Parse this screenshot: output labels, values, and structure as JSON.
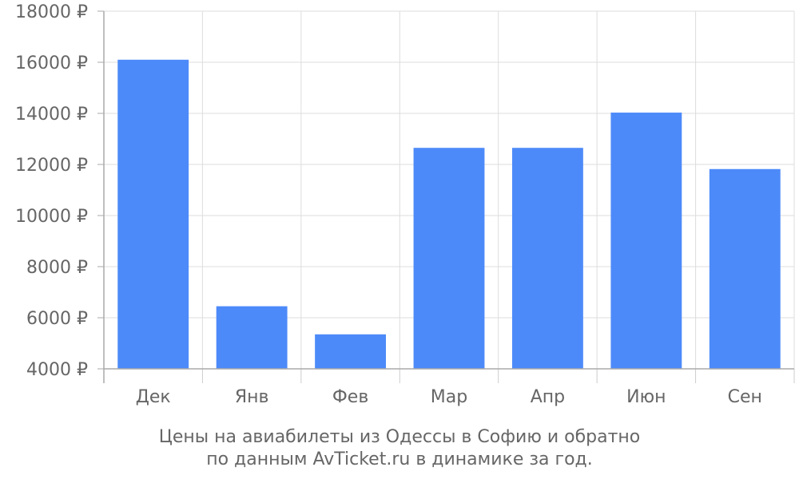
{
  "chart_data": {
    "type": "bar",
    "categories": [
      "Дек",
      "Янв",
      "Фев",
      "Мар",
      "Апр",
      "Июн",
      "Сен"
    ],
    "values": [
      16100,
      6450,
      5350,
      12650,
      12650,
      14030,
      11820
    ],
    "y_tick_labels": [
      "4000 ₽",
      "6000 ₽",
      "8000 ₽",
      "10000 ₽",
      "12000 ₽",
      "14000 ₽",
      "16000 ₽",
      "18000 ₽"
    ],
    "y_ticks": [
      4000,
      6000,
      8000,
      10000,
      12000,
      14000,
      16000,
      18000
    ],
    "ylim": [
      4000,
      18000
    ],
    "grid": true,
    "bar_color": "#4d8af9",
    "caption": [
      "Цены на авиабилеты из Одессы в Софию и обратно",
      "по данным AvTicket.ru в динамике за год."
    ]
  }
}
